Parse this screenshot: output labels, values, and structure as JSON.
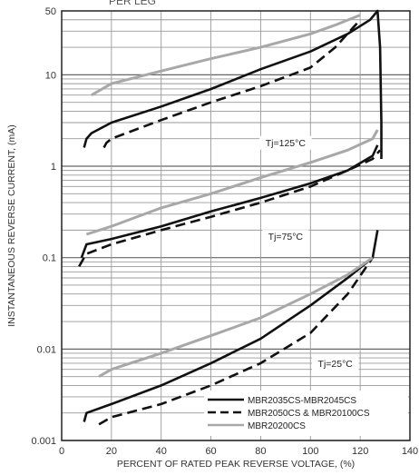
{
  "chart_data": {
    "type": "line",
    "partial_title": "PER LEG",
    "xlabel": "PERCENT OF RATED PEAK REVERSE VOLTAGE, (%)",
    "ylabel": "INSTANTANEOUS REVERSE CURRENT, (mA)",
    "xlim": [
      0,
      140
    ],
    "ylim": [
      0.001,
      50
    ],
    "yscale": "log",
    "grid": true,
    "x_ticks": [
      "0",
      "20",
      "40",
      "60",
      "80",
      "100",
      "120",
      "140"
    ],
    "y_ticks": [
      "0.001",
      "0.01",
      "0.1",
      "1",
      "10",
      "50"
    ],
    "legend_position": "bottom-right",
    "legend": [
      {
        "label": "MBR2035CS-MBR2045CS",
        "style": "solid",
        "color": "#111111"
      },
      {
        "label": "MBR2050CS & MBR20100CS",
        "style": "dashed",
        "color": "#111111"
      },
      {
        "label": "MBR20200CS",
        "style": "solid",
        "color": "#a8a8a8"
      }
    ],
    "annotations": [
      {
        "text": "Tj=125°C",
        "x": 90,
        "y": 1.7
      },
      {
        "text": "Tj=75°C",
        "x": 90,
        "y": 0.16
      },
      {
        "text": "Tj=25°C",
        "x": 110,
        "y": 0.0065
      }
    ],
    "series": [
      {
        "group": "Tj=125°C",
        "style": "solid",
        "color": "#111111",
        "x": [
          9,
          10,
          12,
          20,
          40,
          60,
          80,
          100,
          115,
          124,
          127,
          128,
          128.5,
          128.5
        ],
        "y": [
          1.6,
          2.0,
          2.3,
          3.0,
          4.5,
          7.0,
          11.5,
          18,
          28,
          40,
          50,
          20,
          3,
          1.2
        ]
      },
      {
        "group": "Tj=125°C",
        "style": "dashed",
        "color": "#111111",
        "x": [
          17,
          18,
          20,
          40,
          60,
          80,
          100,
          110,
          120
        ],
        "y": [
          1.6,
          1.8,
          2.0,
          3.2,
          5.0,
          7.5,
          12,
          20,
          40
        ]
      },
      {
        "group": "Tj=125°C",
        "style": "solid",
        "color": "#a8a8a8",
        "x": [
          12,
          20,
          40,
          60,
          80,
          100,
          110,
          120
        ],
        "y": [
          6.0,
          8.0,
          11,
          15,
          20,
          28,
          35,
          45
        ]
      },
      {
        "group": "Tj=75°C",
        "style": "solid",
        "color": "#111111",
        "x": [
          8,
          10,
          20,
          40,
          60,
          80,
          100,
          115,
          125,
          127
        ],
        "y": [
          0.1,
          0.14,
          0.16,
          0.22,
          0.32,
          0.45,
          0.65,
          0.9,
          1.3,
          1.7
        ]
      },
      {
        "group": "Tj=75°C",
        "style": "dashed",
        "color": "#111111",
        "x": [
          7,
          9,
          10,
          20,
          40,
          60,
          80,
          100,
          115,
          125,
          128
        ],
        "y": [
          0.08,
          0.1,
          0.11,
          0.14,
          0.2,
          0.28,
          0.4,
          0.6,
          0.9,
          1.2,
          1.5
        ]
      },
      {
        "group": "Tj=75°C",
        "style": "solid",
        "color": "#a8a8a8",
        "x": [
          10,
          20,
          40,
          60,
          80,
          100,
          115,
          125,
          127
        ],
        "y": [
          0.18,
          0.22,
          0.35,
          0.5,
          0.75,
          1.1,
          1.5,
          2.0,
          2.5
        ]
      },
      {
        "group": "Tj=25°C",
        "style": "solid",
        "color": "#111111",
        "x": [
          9,
          10,
          20,
          40,
          60,
          80,
          100,
          115,
          125,
          127
        ],
        "y": [
          0.0016,
          0.002,
          0.0025,
          0.004,
          0.007,
          0.013,
          0.03,
          0.06,
          0.1,
          0.2
        ]
      },
      {
        "group": "Tj=25°C",
        "style": "dashed",
        "color": "#111111",
        "x": [
          15,
          20,
          40,
          60,
          80,
          100,
          115,
          125
        ],
        "y": [
          0.0015,
          0.0018,
          0.0025,
          0.004,
          0.007,
          0.015,
          0.04,
          0.1
        ]
      },
      {
        "group": "Tj=25°C",
        "style": "solid",
        "color": "#a8a8a8",
        "x": [
          15,
          20,
          40,
          60,
          80,
          100,
          115,
          125
        ],
        "y": [
          0.005,
          0.006,
          0.009,
          0.014,
          0.022,
          0.04,
          0.065,
          0.1
        ]
      }
    ]
  }
}
